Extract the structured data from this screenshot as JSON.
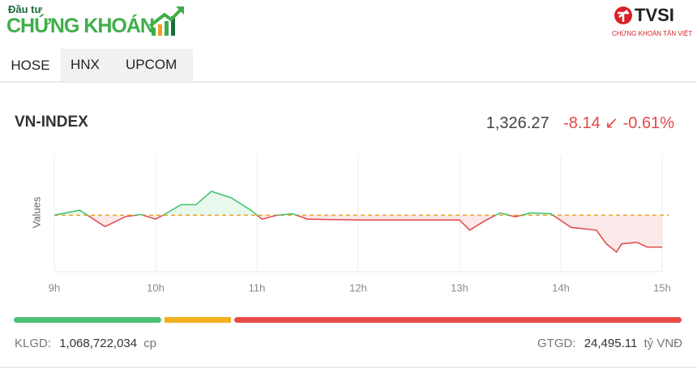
{
  "header": {
    "logo_top": "Đầu tư",
    "logo_main": "CHỨNG KHOÁN",
    "partner": "TVSI",
    "partner_sub": "CHỨNG KHOÁN TÂN VIỆT"
  },
  "tabs": [
    "HOSE",
    "HNX",
    "UPCOM"
  ],
  "index": {
    "name": "VN-INDEX",
    "value": "1,326.27",
    "change": "-8.14",
    "arrow": "↙",
    "change_pct": "-0.61%"
  },
  "chart_data": {
    "type": "line",
    "y_label": "Values",
    "x": [
      9.0,
      9.25,
      9.35,
      9.5,
      9.7,
      9.85,
      10.0,
      10.1,
      10.25,
      10.4,
      10.55,
      10.75,
      10.95,
      11.05,
      11.2,
      11.35,
      11.5,
      12.0,
      13.0,
      13.1,
      13.25,
      13.4,
      13.55,
      13.7,
      13.9,
      14.1,
      14.35,
      14.45,
      14.55,
      14.6,
      14.75,
      14.85,
      15.0
    ],
    "values": [
      1334.41,
      1335.7,
      1334.0,
      1331.5,
      1334.0,
      1334.6,
      1333.4,
      1334.8,
      1337.1,
      1337.1,
      1340.5,
      1338.8,
      1335.5,
      1333.4,
      1334.4,
      1334.8,
      1333.4,
      1333.2,
      1333.2,
      1330.6,
      1333.0,
      1335.0,
      1334.0,
      1335.0,
      1334.8,
      1331.3,
      1330.6,
      1327.1,
      1325.0,
      1327.1,
      1327.5,
      1326.3,
      1326.27
    ],
    "reference": 1334.41,
    "up_color": "#3cc46a",
    "down_color": "#e04848",
    "reference_color": "#f0a020",
    "xlim": [
      9,
      15
    ],
    "ylim": [
      1320,
      1350
    ],
    "xticks": [
      {
        "value": 9,
        "label": "9h"
      },
      {
        "value": 10,
        "label": "10h"
      },
      {
        "value": 11,
        "label": "11h"
      },
      {
        "value": 12,
        "label": "12h"
      },
      {
        "value": 13,
        "label": "13h"
      },
      {
        "value": 14,
        "label": "14h"
      },
      {
        "value": 15,
        "label": "15h"
      }
    ],
    "grid": true
  },
  "footer": {
    "volume_label": "KLGD:",
    "volume": "1,068,722,034",
    "volume_unit": "cp",
    "value_label": "GTGD:",
    "value": "24,495.11",
    "value_unit": "tỷ VNĐ"
  }
}
